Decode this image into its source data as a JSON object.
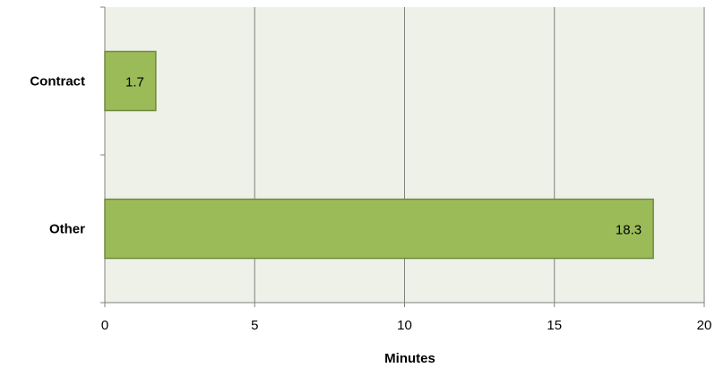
{
  "chart_data": {
    "type": "bar",
    "orientation": "horizontal",
    "categories": [
      "Contract",
      "Other"
    ],
    "values": [
      1.7,
      18.3
    ],
    "data_labels": [
      "1.7",
      "18.3"
    ],
    "title": "",
    "xlabel": "Minutes",
    "ylabel": "",
    "xlim": [
      0,
      20
    ],
    "x_ticks": [
      "0",
      "5",
      "10",
      "15",
      "20"
    ],
    "grid": "vertical",
    "legend": "none",
    "colors": {
      "bar_fill": "#9BBB59",
      "bar_stroke": "#71893F",
      "plot_background": "#EEF1E8",
      "gridline": "#808080",
      "axis": "#808080"
    }
  }
}
